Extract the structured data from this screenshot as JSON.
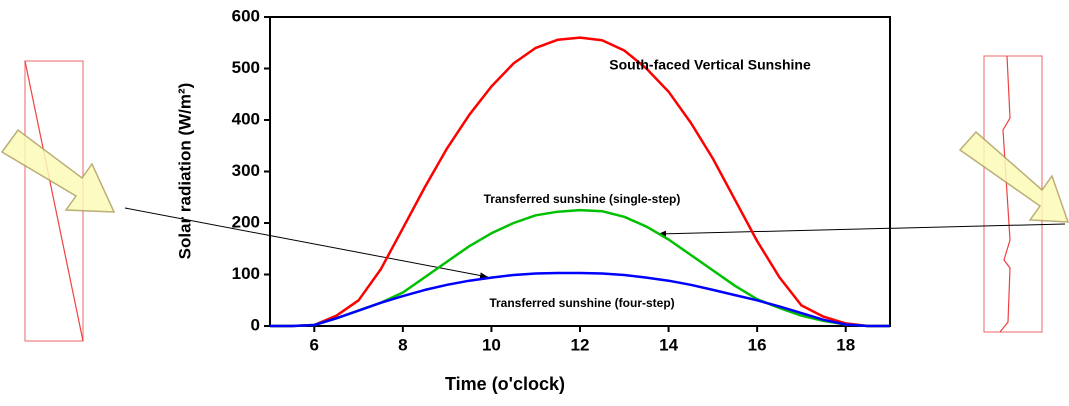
{
  "chart_data": {
    "type": "line",
    "x_label": "Time (o'clock)",
    "y_label": "Solar radiation (W/m²)",
    "xlim": [
      5,
      19
    ],
    "ylim": [
      0,
      600
    ],
    "xticks": [
      6,
      8,
      10,
      12,
      14,
      16,
      18
    ],
    "yticks": [
      0,
      100,
      200,
      300,
      400,
      500,
      600
    ],
    "annotations": [
      "South-faced Vertical Sunshine",
      "Transferred sunshine (single-step)",
      "Transferred sunshine (four-step)"
    ],
    "x": [
      5,
      5.5,
      6,
      6.5,
      7,
      7.5,
      8,
      8.5,
      9,
      9.5,
      10,
      10.5,
      11,
      11.5,
      12,
      12.5,
      13,
      13.5,
      14,
      14.5,
      15,
      15.5,
      16,
      16.5,
      17,
      17.5,
      18,
      18.5,
      19
    ],
    "series": [
      {
        "color": "#ff0000",
        "values": [
          0,
          0,
          2,
          20,
          50,
          110,
          190,
          270,
          345,
          410,
          465,
          510,
          540,
          556,
          560,
          555,
          535,
          500,
          455,
          395,
          325,
          245,
          165,
          95,
          40,
          18,
          5,
          0,
          0
        ]
      },
      {
        "color": "#00c000",
        "values": [
          0,
          0,
          2,
          15,
          30,
          45,
          65,
          95,
          125,
          155,
          180,
          200,
          215,
          222,
          225,
          223,
          212,
          193,
          168,
          138,
          108,
          78,
          52,
          35,
          20,
          10,
          3,
          0,
          0
        ]
      },
      {
        "color": "#0000ff",
        "values": [
          0,
          0,
          2,
          15,
          30,
          45,
          58,
          70,
          80,
          88,
          94,
          99,
          102,
          103,
          103,
          102,
          99,
          94,
          88,
          80,
          70,
          60,
          50,
          38,
          25,
          12,
          3,
          0,
          0
        ]
      }
    ]
  }
}
